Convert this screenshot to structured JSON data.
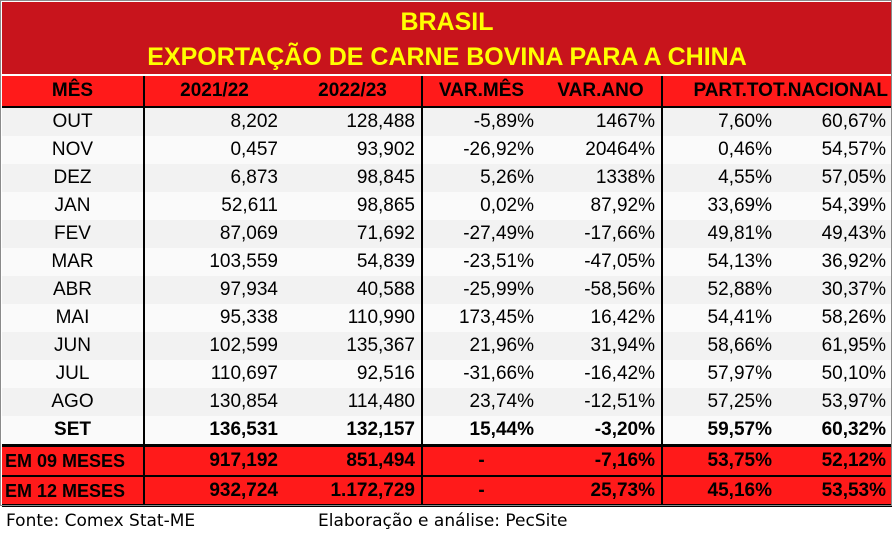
{
  "title": {
    "line1": "BRASIL",
    "line2": "EXPORTAÇÃO DE CARNE BOVINA PARA A CHINA"
  },
  "header": [
    "MÊS",
    "2021/22",
    "2022/23",
    "VAR.MÊS",
    "VAR.ANO",
    "PART.TOT.NACIONAL",
    ""
  ],
  "rows": [
    [
      "OUT",
      "8,202",
      "128,488",
      "-5,89%",
      "1467%",
      "7,60%",
      "60,67%"
    ],
    [
      "NOV",
      "0,457",
      "93,902",
      "-26,92%",
      "20464%",
      "0,46%",
      "54,57%"
    ],
    [
      "DEZ",
      "6,873",
      "98,845",
      "5,26%",
      "1338%",
      "4,55%",
      "57,05%"
    ],
    [
      "JAN",
      "52,611",
      "98,865",
      "0,02%",
      "87,92%",
      "33,69%",
      "54,39%"
    ],
    [
      "FEV",
      "87,069",
      "71,692",
      "-27,49%",
      "-17,66%",
      "49,81%",
      "49,43%"
    ],
    [
      "MAR",
      "103,559",
      "54,839",
      "-23,51%",
      "-47,05%",
      "54,13%",
      "36,92%"
    ],
    [
      "ABR",
      "97,934",
      "40,588",
      "-25,99%",
      "-58,56%",
      "52,88%",
      "30,37%"
    ],
    [
      "MAI",
      "95,338",
      "110,990",
      "173,45%",
      "16,42%",
      "54,41%",
      "58,26%"
    ],
    [
      "JUN",
      "102,599",
      "135,367",
      "21,96%",
      "31,94%",
      "58,66%",
      "61,95%"
    ],
    [
      "JUL",
      "110,697",
      "92,516",
      "-31,66%",
      "-16,42%",
      "57,97%",
      "50,10%"
    ],
    [
      "AGO",
      "130,854",
      "114,480",
      "23,74%",
      "-12,51%",
      "57,25%",
      "53,97%"
    ],
    [
      "SET",
      "136,531",
      "132,157",
      "15,44%",
      "-3,20%",
      "59,57%",
      "60,32%"
    ]
  ],
  "summary": [
    [
      "EM 09 MESES",
      "917,192",
      "851,494",
      "-",
      "-7,16%",
      "53,75%",
      "52,12%"
    ],
    [
      "EM 12 MESES",
      "932,724",
      "1.172,729",
      "-",
      "25,73%",
      "45,16%",
      "53,53%"
    ]
  ],
  "footer": {
    "source": "Fonte: Comex Stat-ME",
    "elaboration": "Elaboração e análise: PecSite"
  },
  "colors": {
    "title_bg": "#c8141c",
    "title_text": "#ffff00",
    "header_bg": "#ff1a1a"
  }
}
